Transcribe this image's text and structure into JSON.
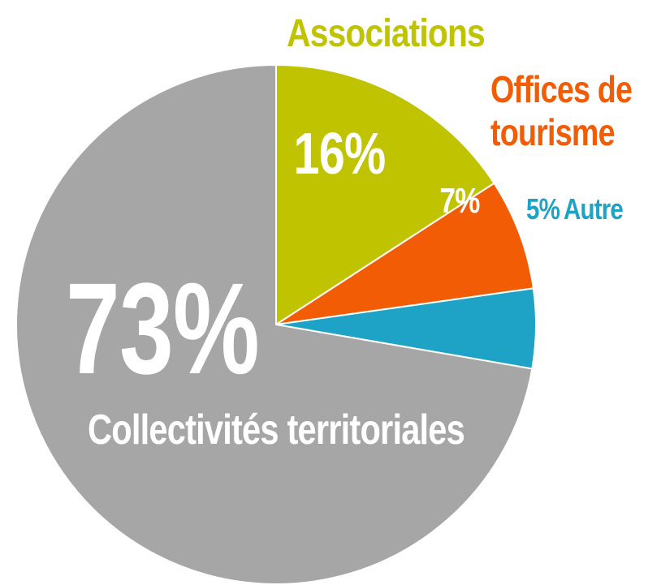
{
  "chart_data": {
    "type": "pie",
    "categories": [
      "Associations",
      "Offices de tourisme",
      "Autre",
      "Collectivités territoriales"
    ],
    "values": [
      16,
      7,
      5,
      73
    ],
    "value_labels": [
      "16%",
      "7%",
      "5%",
      "73%"
    ],
    "colors": [
      "#bfc300",
      "#f25c05",
      "#1ea3c6",
      "#a6a6a6"
    ]
  }
}
